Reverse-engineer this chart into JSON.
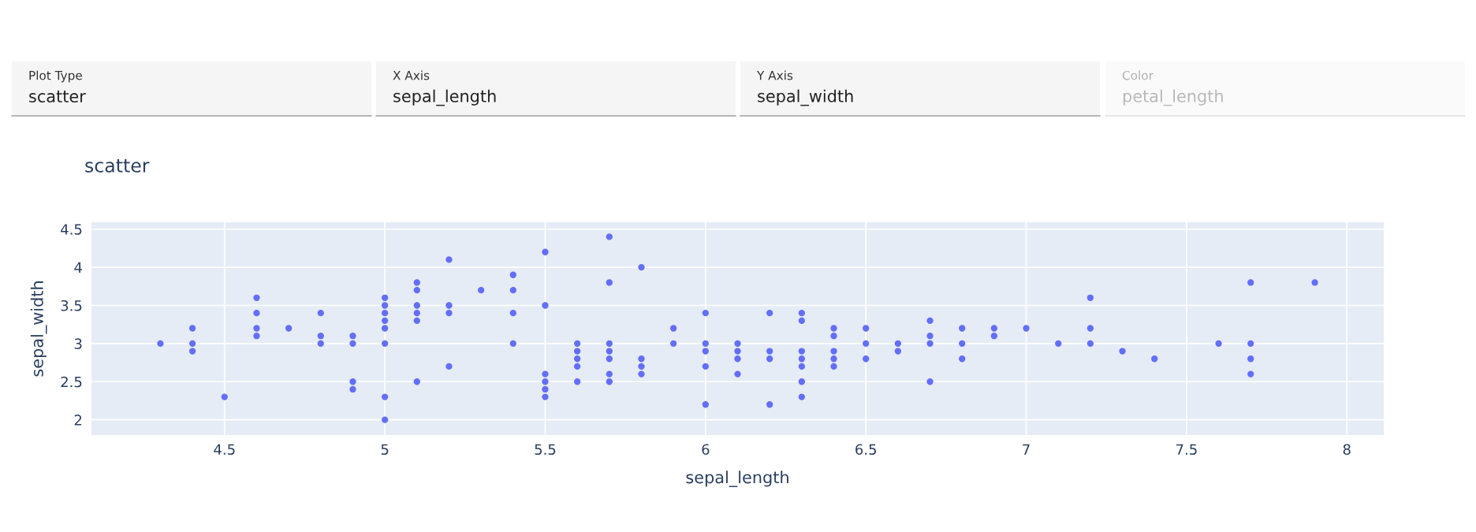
{
  "chart_data": {
    "type": "scatter",
    "title": "scatter",
    "xlabel": "sepal_length",
    "ylabel": "sepal_width",
    "annotations": [
      "Plot Type",
      "scatter",
      "X Axis",
      "sepal_length",
      "Y Axis",
      "sepal_width",
      "Color",
      "petal_length"
    ],
    "series": [
      {
        "color": "#636efa",
        "x": [
          4.3,
          4.4,
          4.4,
          4.4,
          4.5,
          4.6,
          4.6,
          4.6,
          4.6,
          4.7,
          4.8,
          4.8,
          4.8,
          4.9,
          4.9,
          4.9,
          4.9,
          5.0,
          5.0,
          5.0,
          5.0,
          5.0,
          5.0,
          5.0,
          5.0,
          5.1,
          5.1,
          5.1,
          5.1,
          5.1,
          5.1,
          5.2,
          5.2,
          5.2,
          5.2,
          5.3,
          5.4,
          5.4,
          5.4,
          5.4,
          5.5,
          5.5,
          5.5,
          5.5,
          5.5,
          5.5,
          5.6,
          5.6,
          5.6,
          5.6,
          5.6,
          5.7,
          5.7,
          5.7,
          5.7,
          5.7,
          5.7,
          5.7,
          5.8,
          5.8,
          5.8,
          5.8,
          5.9,
          5.9,
          6.0,
          6.0,
          6.0,
          6.0,
          6.0,
          6.1,
          6.1,
          6.1,
          6.1,
          6.2,
          6.2,
          6.2,
          6.2,
          6.3,
          6.3,
          6.3,
          6.3,
          6.3,
          6.3,
          6.3,
          6.4,
          6.4,
          6.4,
          6.4,
          6.4,
          6.5,
          6.5,
          6.5,
          6.6,
          6.6,
          6.7,
          6.7,
          6.7,
          6.7,
          6.8,
          6.8,
          6.8,
          6.9,
          6.9,
          7.0,
          7.1,
          7.2,
          7.2,
          7.2,
          7.3,
          7.4,
          7.6,
          7.7,
          7.7,
          7.7,
          7.7,
          7.9
        ],
        "values": [
          3.0,
          2.9,
          3.0,
          3.2,
          2.3,
          3.1,
          3.4,
          3.6,
          3.2,
          3.2,
          3.4,
          3.0,
          3.1,
          3.0,
          3.1,
          2.4,
          2.5,
          3.6,
          3.4,
          3.0,
          3.2,
          3.5,
          3.3,
          2.0,
          2.3,
          3.5,
          3.8,
          3.7,
          3.3,
          3.4,
          2.5,
          3.5,
          3.4,
          4.1,
          2.7,
          3.7,
          3.9,
          3.7,
          3.4,
          3.0,
          4.2,
          3.5,
          2.3,
          2.4,
          2.5,
          2.6,
          2.9,
          3.0,
          2.5,
          2.7,
          2.8,
          4.4,
          3.8,
          2.8,
          2.6,
          3.0,
          2.9,
          2.5,
          4.0,
          2.7,
          2.6,
          2.8,
          3.0,
          3.2,
          2.2,
          2.9,
          2.7,
          3.4,
          3.0,
          2.9,
          2.8,
          3.0,
          2.6,
          2.2,
          2.9,
          2.8,
          3.4,
          3.3,
          2.5,
          2.3,
          2.9,
          2.7,
          2.8,
          3.4,
          3.2,
          2.9,
          2.7,
          2.8,
          3.1,
          2.8,
          3.0,
          3.2,
          2.9,
          3.0,
          3.1,
          3.0,
          2.5,
          3.3,
          2.8,
          3.0,
          3.2,
          3.1,
          3.2,
          3.2,
          3.0,
          3.6,
          3.2,
          3.0,
          2.9,
          2.8,
          3.0,
          3.8,
          2.6,
          2.8,
          3.0,
          3.8
        ]
      }
    ],
    "xlim": [
      4.085,
      8.115
    ],
    "xticks": [
      4.5,
      5,
      5.5,
      6,
      6.5,
      7,
      7.5,
      8
    ],
    "ylim": [
      1.8,
      4.59
    ],
    "yticks": [
      2,
      2.5,
      3,
      3.5,
      4,
      4.5
    ],
    "grid": true,
    "marker": "circle"
  }
}
